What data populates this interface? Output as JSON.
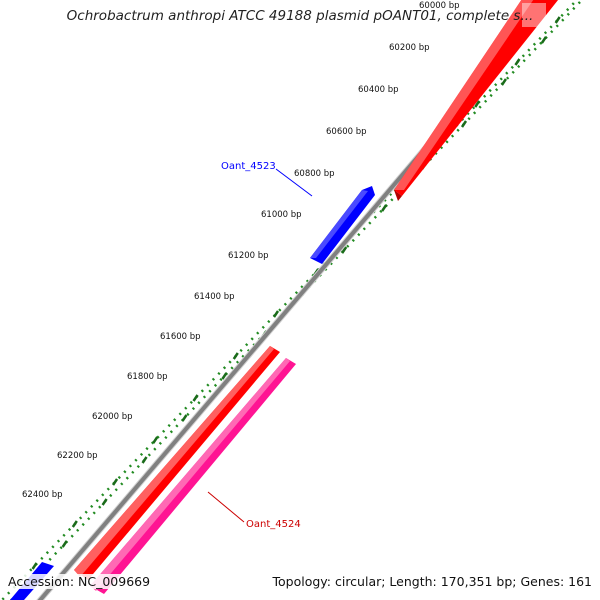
{
  "title": "Ochrobactrum anthropi ATCC 49188 plasmid pOANT01, complete s...",
  "footer": {
    "accession": "Accession: NC_009669",
    "summary": "Topology: circular; Length: 170,351 bp; Genes: 161"
  },
  "colors": {
    "backbone": "#808080",
    "tick_ring": "#228b22",
    "forward_gene": "#ff0000",
    "forward_gene_dark": "#b20000",
    "reverse_gene": "#0000ff",
    "reverse_gene_dark": "#00009a",
    "other_gene": "#ff1493",
    "other_gene_dark": "#b80f68"
  },
  "ruler": {
    "ticks": [
      {
        "label": "60000 bp"
      },
      {
        "label": "60200 bp"
      },
      {
        "label": "60400 bp"
      },
      {
        "label": "60600 bp"
      },
      {
        "label": "60800 bp"
      },
      {
        "label": "61000 bp"
      },
      {
        "label": "61200 bp"
      },
      {
        "label": "61400 bp"
      },
      {
        "label": "61600 bp"
      },
      {
        "label": "61800 bp"
      },
      {
        "label": "62000 bp"
      },
      {
        "label": "62200 bp"
      },
      {
        "label": "62400 bp"
      }
    ]
  },
  "genes": [
    {
      "name": "Oant_4523",
      "strand": "reverse",
      "color": "#0000ff"
    },
    {
      "name": "Oant_4524",
      "strand": "forward",
      "color": "#cc0000"
    }
  ]
}
